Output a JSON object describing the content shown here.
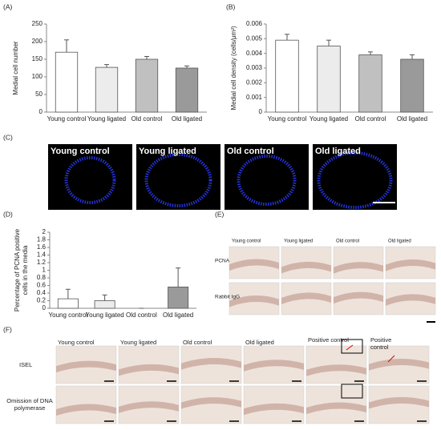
{
  "chart_data": [
    {
      "type": "bar",
      "label": "(A)",
      "ylabel": "Medial cell number",
      "categories": [
        "Young control",
        "Young ligated",
        "Old control",
        "Old ligated"
      ],
      "values": [
        170,
        127,
        150,
        125
      ],
      "errors": [
        35,
        8,
        8,
        6
      ],
      "colors": [
        "#ffffff",
        "#ececec",
        "#c0c0c0",
        "#9a9a9a"
      ],
      "ylim": [
        0,
        250
      ],
      "yticks": [
        0,
        50,
        100,
        150,
        200,
        250
      ]
    },
    {
      "type": "bar",
      "label": "(B)",
      "ylabel": "Medial cell density (cells/μm²)",
      "categories": [
        "Young control",
        "Young ligated",
        "Old control",
        "Old ligated"
      ],
      "values": [
        0.0049,
        0.0045,
        0.0039,
        0.0036
      ],
      "errors": [
        0.0004,
        0.0004,
        0.0002,
        0.0003
      ],
      "colors": [
        "#ffffff",
        "#ececec",
        "#c0c0c0",
        "#9a9a9a"
      ],
      "ylim": [
        0,
        0.006
      ],
      "yticks": [
        0,
        0.001,
        0.002,
        0.003,
        0.004,
        0.005,
        0.006
      ]
    },
    {
      "type": "bar",
      "label": "(D)",
      "ylabel": [
        "Percentage of PCNA positive",
        "cells in the media"
      ],
      "categories": [
        "Young control",
        "Young ligated",
        "Old control",
        "Old ligated"
      ],
      "values": [
        0.25,
        0.2,
        0,
        0.56
      ],
      "errors": [
        0.25,
        0.15,
        0,
        0.5
      ],
      "colors": [
        "#ffffff",
        "#ececec",
        "#c0c0c0",
        "#9a9a9a"
      ],
      "ylim": [
        0,
        2
      ],
      "yticks": [
        0,
        0.2,
        0.4,
        0.6,
        0.8,
        1,
        1.2,
        1.4,
        1.6,
        1.8,
        2
      ]
    }
  ],
  "panel_c": {
    "label": "(C)",
    "images": [
      "Young control",
      "Young ligated",
      "Old control",
      "Old ligated"
    ]
  },
  "panel_e": {
    "label": "(E)",
    "columns": [
      "Young control",
      "Young ligated",
      "Old control",
      "Old ligated"
    ],
    "rows": [
      "PCNA",
      "Rabbit IgG"
    ]
  },
  "panel_f": {
    "label": "(F)",
    "columns": [
      "Young control",
      "Young ligated",
      "Old control",
      "Old ligated",
      "Positive control",
      "Positive control"
    ],
    "rows": [
      "ISEL",
      "Omission of DNA polymerase"
    ]
  }
}
